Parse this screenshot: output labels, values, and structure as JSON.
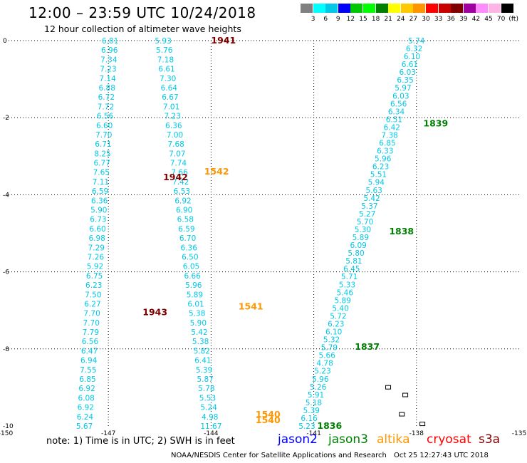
{
  "header": {
    "title": "12:00 – 23:59 UTC 10/24/2018",
    "subtitle": "12 hour collection of altimeter wave heights"
  },
  "colorbar": {
    "swatches": [
      "#808080",
      "#00ffff",
      "#00c8e6",
      "#0000ff",
      "#00c800",
      "#00ff00",
      "#008000",
      "#ffff00",
      "#ffc800",
      "#ff9600",
      "#ff0000",
      "#c80000",
      "#800000",
      "#a000a0",
      "#ff8cff",
      "#ffb4e6",
      "#000000"
    ],
    "labels": [
      "3",
      "6",
      "9",
      "12",
      "15",
      "18",
      "21",
      "24",
      "27",
      "30",
      "33",
      "36",
      "39",
      "42",
      "45",
      "70",
      "(ft)"
    ]
  },
  "chart_data": {
    "type": "scatter",
    "xlim": [
      -150,
      -135
    ],
    "ylim": [
      -10,
      0
    ],
    "x_ticks": [
      "-150",
      "-147",
      "-144",
      "-141",
      "-138",
      "-135"
    ],
    "y_ticks": [
      "0",
      "-2",
      "-4",
      "-6",
      "-8",
      "-10"
    ],
    "tracks": [
      {
        "name": "track-a",
        "start": [
          -146.95,
          0
        ],
        "end": [
          -147.7,
          -10
        ],
        "values": [
          "6.81",
          "6.96",
          "7.34",
          "7.23",
          "7.14",
          "6.88",
          "6.72",
          "7.72",
          "6.56",
          "6.60",
          "7.70",
          "6.71",
          "8.25",
          "6.77",
          "7.65",
          "7.11",
          "6.59",
          "6.36",
          "5.90",
          "6.73",
          "6.60",
          "6.98",
          "7.29",
          "7.26",
          "5.92",
          "6.75",
          "6.23",
          "7.50",
          "6.27",
          "7.70",
          "7.70",
          "7.79",
          "6.56",
          "6.47",
          "6.94",
          "7.55",
          "6.85",
          "6.92",
          "6.08",
          "6.92",
          "6.24",
          "5.67"
        ]
      },
      {
        "name": "track-b",
        "start": [
          -145.4,
          0
        ],
        "end": [
          -144.0,
          -10
        ],
        "values": [
          "5.93",
          "5.76",
          "7.18",
          "6.61",
          "7.30",
          "6.64",
          "6.67",
          "7.01",
          "7.23",
          "6.36",
          "7.00",
          "7.68",
          "7.07",
          "7.74",
          "7.66",
          "7.42",
          "6.53",
          "6.92",
          "6.90",
          "6.58",
          "6.59",
          "6.70",
          "6.36",
          "6.50",
          "6.05",
          "6.66",
          "5.96",
          "5.89",
          "6.01",
          "5.38",
          "5.90",
          "5.42",
          "5.38",
          "5.82",
          "6.41",
          "5.39",
          "5.87",
          "5.78",
          "5.53",
          "5.24",
          "4.98",
          "11.67"
        ]
      },
      {
        "name": "track-c",
        "start": [
          -138.0,
          0
        ],
        "end": [
          -141.2,
          -10
        ],
        "values": [
          "5.74",
          "6.32",
          "6.10",
          "6.61",
          "6.03",
          "6.35",
          "5.97",
          "6.03",
          "6.56",
          "6.34",
          "6.51",
          "6.42",
          "7.38",
          "6.85",
          "6.33",
          "5.96",
          "6.23",
          "5.51",
          "5.94",
          "5.63",
          "5.42",
          "5.37",
          "5.27",
          "5.70",
          "5.30",
          "5.89",
          "6.09",
          "5.80",
          "5.81",
          "6.45",
          "5.71",
          "5.33",
          "5.46",
          "5.89",
          "5.40",
          "5.72",
          "6.23",
          "6.10",
          "5.32",
          "5.79",
          "5.66",
          "4.78",
          "5.23",
          "5.96",
          "5.26",
          "5.91",
          "5.18",
          "5.39",
          "6.16",
          "5.23"
        ]
      }
    ],
    "time_labels": [
      {
        "text": "1941",
        "x": -144.0,
        "y": 0,
        "color": "#800000"
      },
      {
        "text": "1542",
        "x": -144.2,
        "y": -3.4,
        "color": "#ff9600"
      },
      {
        "text": "1942",
        "x": -145.4,
        "y": -3.55,
        "color": "#800000"
      },
      {
        "text": "1943",
        "x": -146.0,
        "y": -7.05,
        "color": "#800000"
      },
      {
        "text": "1541",
        "x": -143.2,
        "y": -6.9,
        "color": "#ff9600"
      },
      {
        "text": "1540",
        "x": -142.7,
        "y": -9.7,
        "color": "#ff9600"
      },
      {
        "text": "1540",
        "x": -142.7,
        "y": -9.85,
        "color": "#ff9600"
      },
      {
        "text": "1839",
        "x": -137.8,
        "y": -2.15,
        "color": "#008000"
      },
      {
        "text": "1838",
        "x": -138.8,
        "y": -4.95,
        "color": "#008000"
      },
      {
        "text": "1837",
        "x": -139.8,
        "y": -7.95,
        "color": "#008000"
      },
      {
        "text": "1836",
        "x": -140.9,
        "y": -10.0,
        "color": "#008000"
      }
    ]
  },
  "footer": {
    "note": "note:  1) Time is in UTC;  2) SWH is in feet",
    "legend": [
      {
        "label": "jason2",
        "color": "#0000ff"
      },
      {
        "label": "jason3",
        "color": "#008000"
      },
      {
        "label": "altika",
        "color": "#ff9600"
      },
      {
        "label": "cryosat",
        "color": "#ff0000"
      },
      {
        "label": "s3a",
        "color": "#800000"
      }
    ],
    "credit": "NOAA/NESDIS Center for Satellite Applications and Research",
    "timestamp": "Oct 25 12:27:43 UTC 2018"
  }
}
